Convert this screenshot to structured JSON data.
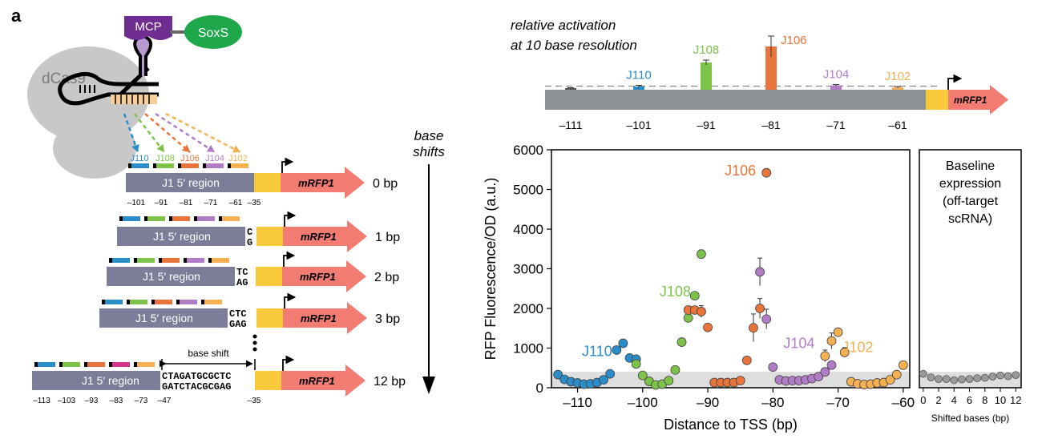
{
  "panel_label": "a",
  "schematic": {
    "dcas9_label": "dCas9",
    "mcp_label": "MCP",
    "soxs_label": "SoxS",
    "base_shifts_title_1": "base",
    "base_shifts_title_2": "shifts",
    "site_labels": [
      "J110",
      "J108",
      "J106",
      "J104",
      "J102"
    ],
    "site_colors": [
      "#2a8cc8",
      "#7dc34a",
      "#e8743b",
      "#b07cc6",
      "#f4b052"
    ],
    "region_label": "J1 5′ region",
    "reporter_label": "mRFP1",
    "constructs": [
      {
        "shift": "0 bp",
        "insert_top": "",
        "insert_bottom": ""
      },
      {
        "shift": "1 bp",
        "insert_top": "C",
        "insert_bottom": "G"
      },
      {
        "shift": "2 bp",
        "insert_top": "TC",
        "insert_bottom": "AG"
      },
      {
        "shift": "3 bp",
        "insert_top": "CTC",
        "insert_bottom": "GAG"
      },
      {
        "shift": "12 bp",
        "insert_top": "CTAGATGCGCTC",
        "insert_bottom": "GATCTACGCGAG"
      }
    ],
    "ticks_0bp": [
      "–101",
      "–91",
      "–81",
      "–71",
      "–61",
      "–35"
    ],
    "ticks_12bp": [
      "–113",
      "–103",
      "–93",
      "–83",
      "–73",
      "–47",
      "–35"
    ],
    "base_shift_label": "base shift"
  },
  "inset": {
    "title_1": "relative activation",
    "title_2": "at 10 base resolution",
    "reporter_label": "mRFP1",
    "colors": {
      "bar_gray": "#8c9196"
    }
  },
  "chart_data": [
    {
      "type": "bar",
      "title": "relative activation at 10 base resolution",
      "categories": [
        "–111",
        "–101",
        "–91",
        "–81",
        "–71",
        "–61"
      ],
      "labels": [
        "",
        "J110",
        "J108",
        "J106",
        "J104",
        "J102"
      ],
      "values": [
        0.2,
        0.4,
        3.4,
        5.4,
        0.55,
        0.3
      ],
      "errors": [
        0.05,
        0.15,
        0.3,
        1.3,
        0.1,
        0.1
      ],
      "baseline": 0.45,
      "colors": [
        "#555555",
        "#2a8cc8",
        "#7dc34a",
        "#e8743b",
        "#b07cc6",
        "#f4b052"
      ]
    },
    {
      "type": "scatter",
      "xlabel": "Distance to TSS (bp)",
      "ylabel": "RFP Fluorescence/OD (a.u.)",
      "xlim": [
        -114,
        -59
      ],
      "ylim": [
        0,
        6000
      ],
      "xticks": [
        -110,
        -100,
        -90,
        -80,
        -70,
        -60
      ],
      "xtick_labels": [
        "–110",
        "–100",
        "–90",
        "–80",
        "–70",
        "–60"
      ],
      "yticks": [
        0,
        1000,
        2000,
        3000,
        4000,
        5000,
        6000
      ],
      "ytick_labels": [
        "0",
        "1000",
        "2000",
        "3000",
        "4000",
        "5000",
        "6000"
      ],
      "baseline_band": [
        0,
        400
      ],
      "series": [
        {
          "name": "J110",
          "color": "#2a8cc8",
          "x": [
            -113,
            -112,
            -111,
            -110,
            -109,
            -108,
            -107,
            -106,
            -105,
            -104,
            -103,
            -102,
            -101
          ],
          "y": [
            330,
            210,
            150,
            120,
            90,
            100,
            130,
            200,
            350,
            950,
            1120,
            750,
            720
          ],
          "err": [
            0,
            0,
            0,
            0,
            0,
            0,
            0,
            0,
            0,
            0,
            0,
            0,
            0
          ]
        },
        {
          "name": "J108",
          "color": "#7dc34a",
          "x": [
            -101,
            -100,
            -99,
            -98,
            -97,
            -96,
            -95,
            -94,
            -93,
            -92,
            -91
          ],
          "y": [
            600,
            310,
            160,
            70,
            90,
            180,
            450,
            1150,
            1760,
            2320,
            3370
          ],
          "err": [
            0,
            0,
            0,
            0,
            0,
            0,
            0,
            0,
            0,
            0,
            100
          ]
        },
        {
          "name": "J106",
          "color": "#e8743b",
          "x": [
            -93,
            -92,
            -91,
            -90,
            -89,
            -88,
            -87,
            -86,
            -85,
            -84,
            -83,
            -82,
            -81
          ],
          "y": [
            1960,
            1960,
            1920,
            1520,
            130,
            130,
            130,
            130,
            180,
            690,
            1510,
            2000,
            5420
          ],
          "err": [
            100,
            0,
            150,
            0,
            0,
            0,
            0,
            0,
            0,
            0,
            350,
            250,
            100
          ]
        },
        {
          "name": "J104",
          "color": "#b07cc6",
          "x": [
            -82,
            -81,
            -80,
            -79,
            -78,
            -77,
            -76,
            -75,
            -74,
            -73,
            -72,
            -71
          ],
          "y": [
            2920,
            1730,
            520,
            200,
            170,
            180,
            180,
            200,
            230,
            280,
            400,
            570
          ],
          "err": [
            350,
            250,
            0,
            0,
            0,
            0,
            0,
            0,
            0,
            0,
            0,
            0
          ]
        },
        {
          "name": "J102",
          "color": "#f4b052",
          "x": [
            -72,
            -71,
            -70,
            -69,
            -68,
            -67,
            -66,
            -65,
            -64,
            -63,
            -62,
            -61,
            -60
          ],
          "y": [
            800,
            1180,
            1400,
            890,
            150,
            100,
            80,
            90,
            120,
            130,
            200,
            330,
            570
          ],
          "err": [
            150,
            200,
            0,
            120,
            0,
            0,
            0,
            0,
            0,
            0,
            0,
            0,
            0
          ]
        }
      ],
      "annotations": [
        {
          "text": "J106",
          "x": -85,
          "y": 5350
        },
        {
          "text": "J108",
          "x": -95,
          "y": 2300
        },
        {
          "text": "J110",
          "x": -107,
          "y": 800
        },
        {
          "text": "J104",
          "x": -76,
          "y": 1000
        },
        {
          "text": "J102",
          "x": -67,
          "y": 900
        }
      ]
    },
    {
      "type": "scatter",
      "title": "Baseline expression (off-target scRNA)",
      "title_lines": [
        "Baseline",
        "expression",
        "(off-target",
        "scRNA)"
      ],
      "xlabel": "Shifted bases (bp)",
      "xlim": [
        -0.5,
        12.7
      ],
      "ylim": [
        0,
        6000
      ],
      "xticks": [
        0,
        2,
        4,
        6,
        8,
        10,
        12
      ],
      "xtick_labels": [
        "0",
        "2",
        "4",
        "6",
        "8",
        "10",
        "12"
      ],
      "baseline_band": [
        0,
        400
      ],
      "color": "#9a9a9a",
      "x": [
        0,
        1,
        2,
        3,
        4,
        5,
        6,
        7,
        8,
        9,
        10,
        11,
        12
      ],
      "y": [
        350,
        260,
        220,
        220,
        190,
        210,
        220,
        240,
        250,
        280,
        310,
        290,
        320
      ]
    }
  ]
}
